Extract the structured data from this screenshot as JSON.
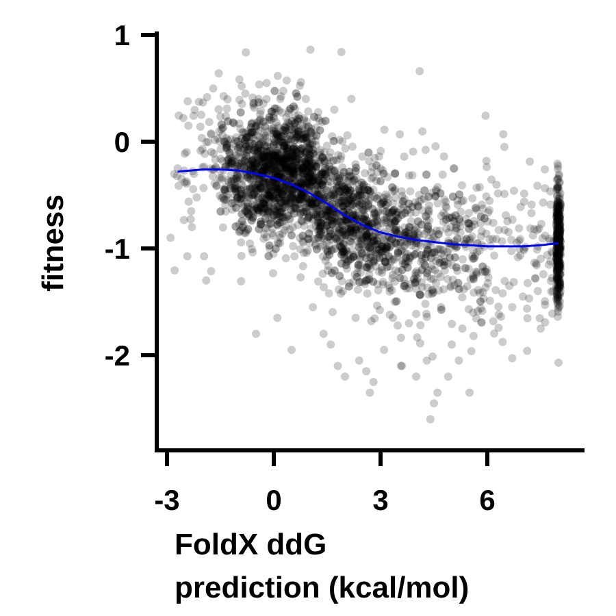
{
  "chart_data": {
    "type": "scatter",
    "title": "",
    "xlabel": [
      "FoldX ddG",
      "prediction (kcal/mol)"
    ],
    "ylabel": "fitness",
    "xlim": [
      -3.3,
      8.6
    ],
    "ylim": [
      -2.85,
      1.05
    ],
    "x_ticks": [
      -3,
      0,
      3,
      6
    ],
    "x_tick_labels": [
      "-3",
      "0",
      "3",
      "6"
    ],
    "y_ticks": [
      1,
      0,
      -1,
      -2
    ],
    "y_tick_labels": [
      "1",
      "0",
      "-1",
      "-2"
    ],
    "grid": false,
    "legend": "none",
    "point_color": "#000000",
    "point_opacity": 0.2,
    "fit_color": "#0000ff",
    "fit_curve": {
      "x": [
        -2.7,
        -2.0,
        -1.5,
        -1.0,
        -0.5,
        0.0,
        0.5,
        1.0,
        1.5,
        2.0,
        2.5,
        3.0,
        3.5,
        4.0,
        4.5,
        5.0,
        5.5,
        6.0,
        6.5,
        7.0,
        7.5,
        8.0
      ],
      "y": [
        -0.28,
        -0.26,
        -0.26,
        -0.27,
        -0.3,
        -0.34,
        -0.4,
        -0.48,
        -0.58,
        -0.69,
        -0.78,
        -0.85,
        -0.89,
        -0.92,
        -0.94,
        -0.96,
        -0.97,
        -0.98,
        -0.98,
        -0.98,
        -0.97,
        -0.95
      ]
    },
    "outlier_points": {
      "x": [
        1.9,
        4.1,
        -2.9,
        -2.7,
        -2.3,
        -2.4,
        -1.9,
        -0.9,
        -0.8,
        -0.2,
        -0.5,
        0.5,
        0.1,
        1.1,
        1.4,
        1.6,
        1.8,
        2.0,
        2.3,
        2.4,
        2.6,
        2.7,
        2.8,
        3.1,
        3.4,
        3.6,
        4.0,
        4.3,
        4.4,
        4.5,
        4.6,
        4.7,
        4.9,
        5.0,
        5.2,
        5.5,
        3.8,
        5.3,
        5.6,
        6.7,
        7.0,
        7.5,
        8.0,
        1.7,
        0.9
      ],
      "y": [
        0.84,
        0.66,
        -0.9,
        -0.25,
        -0.8,
        0.15,
        -1.3,
        0.52,
        0.45,
        0.55,
        -1.8,
        -1.95,
        -1.65,
        -1.55,
        -1.8,
        -1.9,
        -2.1,
        -2.2,
        -1.65,
        -2.05,
        -2.15,
        -2.35,
        -2.25,
        -1.95,
        -1.5,
        -2.1,
        -2.2,
        -2.05,
        -2.6,
        -2.45,
        -2.35,
        -1.55,
        -2.2,
        -1.9,
        -2.05,
        -2.35,
        -1.7,
        -1.75,
        -1.6,
        -1.55,
        -1.45,
        -1.75,
        -2.07,
        0.3,
        0.4
      ]
    }
  }
}
